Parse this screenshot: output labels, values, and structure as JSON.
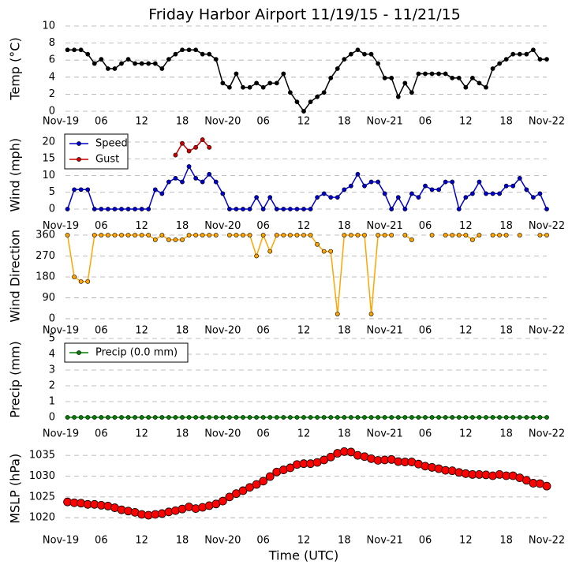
{
  "chart_data": [
    {
      "type": "line",
      "title": "Friday Harbor Airport 11/19/15 - 11/21/15",
      "ylabel": "Temp (°C)",
      "color": "#000000",
      "x": [
        1,
        2,
        3,
        4,
        5,
        6,
        7,
        8,
        9,
        10,
        11,
        12,
        13,
        14,
        15,
        16,
        17,
        18,
        19,
        20,
        21,
        22,
        23,
        24,
        25,
        26,
        27,
        28,
        29,
        30,
        31,
        32,
        33,
        34,
        35,
        36,
        37,
        38,
        39,
        40,
        41,
        42,
        43,
        44,
        45,
        46,
        47,
        48,
        49,
        50,
        51,
        52,
        53,
        54,
        55,
        56,
        57,
        58,
        59,
        60,
        61,
        62,
        63,
        64,
        65,
        66,
        67,
        68,
        69,
        70,
        71,
        72
      ],
      "values": [
        7.2,
        7.2,
        7.2,
        6.7,
        5.6,
        6.1,
        5.0,
        5.0,
        5.6,
        6.1,
        5.6,
        5.6,
        5.6,
        5.6,
        5.0,
        6.1,
        6.7,
        7.2,
        7.2,
        7.2,
        6.7,
        6.7,
        6.1,
        3.3,
        2.8,
        4.4,
        2.8,
        2.8,
        3.3,
        2.8,
        3.3,
        3.3,
        4.4,
        2.2,
        1.1,
        0,
        1.1,
        1.7,
        2.2,
        3.9,
        5.0,
        6.1,
        6.7,
        7.2,
        6.7,
        6.7,
        5.6,
        3.9,
        3.9,
        1.7,
        3.3,
        2.2,
        4.4,
        4.4,
        4.4,
        4.4,
        4.4,
        3.9,
        3.9,
        2.8,
        3.9,
        3.3,
        2.8,
        5.0,
        5.6,
        6.1,
        6.7,
        6.7,
        6.7,
        7.2,
        6.1,
        6.1
      ],
      "xlim": [
        0,
        72
      ],
      "xticks": [
        {
          "value": 0,
          "label": "Nov-19"
        },
        {
          "value": 6,
          "label": "06"
        },
        {
          "value": 12,
          "label": "12"
        },
        {
          "value": 18,
          "label": "18"
        },
        {
          "value": 24,
          "label": "Nov-20"
        },
        {
          "value": 30,
          "label": "06"
        },
        {
          "value": 36,
          "label": "12"
        },
        {
          "value": 42,
          "label": "18"
        },
        {
          "value": 48,
          "label": "Nov-21"
        },
        {
          "value": 54,
          "label": "06"
        },
        {
          "value": 60,
          "label": "12"
        },
        {
          "value": 66,
          "label": "18"
        },
        {
          "value": 72,
          "label": "Nov-22"
        }
      ],
      "ylim": [
        0,
        10
      ],
      "yticks": [
        0,
        2,
        4,
        6,
        8,
        10
      ],
      "grid": true
    },
    {
      "type": "line",
      "ylabel": "Wind (mph)",
      "legend": "upper left",
      "x": [
        1,
        2,
        3,
        4,
        5,
        6,
        7,
        8,
        9,
        10,
        11,
        12,
        13,
        14,
        15,
        16,
        17,
        18,
        19,
        20,
        21,
        22,
        23,
        24,
        25,
        26,
        27,
        28,
        29,
        30,
        31,
        32,
        33,
        34,
        35,
        36,
        37,
        38,
        39,
        40,
        41,
        42,
        43,
        44,
        45,
        46,
        47,
        48,
        49,
        50,
        51,
        52,
        53,
        54,
        55,
        56,
        57,
        58,
        59,
        60,
        61,
        62,
        63,
        64,
        65,
        66,
        67,
        68,
        69,
        70,
        71,
        72
      ],
      "series": [
        {
          "name": "Speed",
          "color": "#0000cc",
          "values": [
            0,
            5.8,
            5.8,
            5.8,
            0,
            0,
            0,
            0,
            0,
            0,
            0,
            0,
            0,
            5.8,
            4.6,
            8.1,
            9.2,
            8.1,
            12.7,
            9.2,
            8.1,
            10.4,
            8.1,
            4.6,
            0,
            0,
            0,
            0,
            3.5,
            0,
            3.5,
            0,
            0,
            0,
            0,
            0,
            0,
            3.5,
            4.6,
            3.5,
            3.5,
            5.8,
            6.9,
            10.4,
            6.9,
            8.1,
            8.1,
            4.6,
            0,
            3.5,
            0,
            4.6,
            3.5,
            6.9,
            5.8,
            5.8,
            8.1,
            8.1,
            0,
            3.5,
            4.6,
            8.1,
            4.6,
            4.6,
            4.6,
            6.9,
            6.9,
            9.2,
            5.8,
            3.5,
            4.6,
            0
          ]
        },
        {
          "name": "Gust",
          "color": "#cc0000",
          "values": [
            null,
            null,
            null,
            null,
            null,
            null,
            null,
            null,
            null,
            null,
            null,
            null,
            null,
            null,
            null,
            null,
            16.1,
            19.6,
            17.3,
            18.4,
            20.7,
            18.4,
            null,
            null,
            null,
            null,
            null,
            null,
            null,
            null,
            null,
            null,
            null,
            null,
            null,
            null,
            null,
            null,
            null,
            null,
            null,
            null,
            null,
            null,
            null,
            null,
            null,
            null,
            null,
            null,
            null,
            null,
            null,
            null,
            null,
            null,
            null,
            null,
            null,
            null,
            null,
            null,
            null,
            null,
            null,
            null,
            null,
            null,
            null,
            null,
            null,
            null
          ]
        }
      ],
      "xlim": [
        0,
        72
      ],
      "xticks": [
        {
          "value": 0,
          "label": "Nov-19"
        },
        {
          "value": 6,
          "label": "06"
        },
        {
          "value": 12,
          "label": "12"
        },
        {
          "value": 18,
          "label": "18"
        },
        {
          "value": 24,
          "label": "Nov-20"
        },
        {
          "value": 30,
          "label": "06"
        },
        {
          "value": 36,
          "label": "12"
        },
        {
          "value": 42,
          "label": "18"
        },
        {
          "value": 48,
          "label": "Nov-21"
        },
        {
          "value": 54,
          "label": "06"
        },
        {
          "value": 60,
          "label": "12"
        },
        {
          "value": 66,
          "label": "18"
        },
        {
          "value": 72,
          "label": "Nov-22"
        }
      ],
      "ylim": [
        -2,
        22.35
      ],
      "yticks": [
        0,
        5,
        10,
        15,
        20
      ],
      "grid": true
    },
    {
      "type": "line",
      "ylabel": "Wind Direction",
      "color": "#ffa500",
      "x": [
        1,
        2,
        3,
        4,
        5,
        6,
        7,
        8,
        9,
        10,
        11,
        12,
        13,
        14,
        15,
        16,
        17,
        18,
        19,
        20,
        21,
        22,
        23,
        24,
        25,
        26,
        27,
        28,
        29,
        30,
        31,
        32,
        33,
        34,
        35,
        36,
        37,
        38,
        39,
        40,
        41,
        42,
        43,
        44,
        45,
        46,
        47,
        48,
        49,
        50,
        51,
        52,
        53,
        54,
        55,
        56,
        57,
        58,
        59,
        60,
        61,
        62,
        63,
        64,
        65,
        66,
        67,
        68,
        69,
        70,
        71,
        72
      ],
      "values": [
        360,
        180,
        160,
        160,
        360,
        360,
        360,
        360,
        360,
        360,
        360,
        360,
        360,
        340,
        360,
        340,
        340,
        340,
        360,
        360,
        360,
        360,
        360,
        null,
        360,
        360,
        360,
        360,
        270,
        360,
        290,
        360,
        360,
        360,
        360,
        360,
        360,
        320,
        290,
        290,
        20,
        360,
        360,
        360,
        360,
        20,
        360,
        360,
        360,
        null,
        360,
        340,
        null,
        null,
        360,
        null,
        360,
        360,
        360,
        360,
        340,
        360,
        null,
        360,
        360,
        360,
        null,
        360,
        null,
        null,
        360,
        360
      ],
      "xlim": [
        0,
        72
      ],
      "xticks": [
        {
          "value": 0,
          "label": "Nov-19"
        },
        {
          "value": 6,
          "label": "06"
        },
        {
          "value": 12,
          "label": "12"
        },
        {
          "value": 18,
          "label": "18"
        },
        {
          "value": 24,
          "label": "Nov-20"
        },
        {
          "value": 30,
          "label": "06"
        },
        {
          "value": 36,
          "label": "12"
        },
        {
          "value": 42,
          "label": "18"
        },
        {
          "value": 48,
          "label": "Nov-21"
        },
        {
          "value": 54,
          "label": "06"
        },
        {
          "value": 60,
          "label": "12"
        },
        {
          "value": 66,
          "label": "18"
        },
        {
          "value": 72,
          "label": "Nov-22"
        }
      ],
      "ylim": [
        -7,
        375
      ],
      "yticks": [
        0,
        90,
        180,
        270,
        360
      ],
      "grid": true
    },
    {
      "type": "line",
      "ylabel": "Precip (mm)",
      "legend": "upper left",
      "x": [
        1,
        2,
        3,
        4,
        5,
        6,
        7,
        8,
        9,
        10,
        11,
        12,
        13,
        14,
        15,
        16,
        17,
        18,
        19,
        20,
        21,
        22,
        23,
        24,
        25,
        26,
        27,
        28,
        29,
        30,
        31,
        32,
        33,
        34,
        35,
        36,
        37,
        38,
        39,
        40,
        41,
        42,
        43,
        44,
        45,
        46,
        47,
        48,
        49,
        50,
        51,
        52,
        53,
        54,
        55,
        56,
        57,
        58,
        59,
        60,
        61,
        62,
        63,
        64,
        65,
        66,
        67,
        68,
        69,
        70,
        71,
        72
      ],
      "series": [
        {
          "name": "Precip (0.0 mm)",
          "color": "#008000",
          "values": [
            0,
            0,
            0,
            0,
            0,
            0,
            0,
            0,
            0,
            0,
            0,
            0,
            0,
            0,
            0,
            0,
            0,
            0,
            0,
            0,
            0,
            0,
            0,
            0,
            0,
            0,
            0,
            0,
            0,
            0,
            0,
            0,
            0,
            0,
            0,
            0,
            0,
            0,
            0,
            0,
            0,
            0,
            0,
            0,
            0,
            0,
            0,
            0,
            0,
            0,
            0,
            0,
            0,
            0,
            0,
            0,
            0,
            0,
            0,
            0,
            0,
            0,
            0,
            0,
            0,
            0,
            0,
            0,
            0,
            0,
            0,
            0
          ]
        }
      ],
      "xlim": [
        0,
        72
      ],
      "xticks": [
        {
          "value": 0,
          "label": "Nov-19"
        },
        {
          "value": 6,
          "label": "06"
        },
        {
          "value": 12,
          "label": "12"
        },
        {
          "value": 18,
          "label": "18"
        },
        {
          "value": 24,
          "label": "Nov-20"
        },
        {
          "value": 30,
          "label": "06"
        },
        {
          "value": 36,
          "label": "12"
        },
        {
          "value": 42,
          "label": "18"
        },
        {
          "value": 48,
          "label": "Nov-21"
        },
        {
          "value": 54,
          "label": "06"
        },
        {
          "value": 60,
          "label": "12"
        },
        {
          "value": 66,
          "label": "18"
        },
        {
          "value": 72,
          "label": "Nov-22"
        }
      ],
      "ylim": [
        -0.4,
        5.2
      ],
      "yticks": [
        0,
        1,
        2,
        3,
        4,
        5
      ],
      "grid": true
    },
    {
      "type": "scatter",
      "ylabel": "MSLP (hPa)",
      "xlabel": "Time (UTC)",
      "color": "#ff0000",
      "x": [
        1,
        2,
        3,
        4,
        5,
        6,
        7,
        8,
        9,
        10,
        11,
        12,
        13,
        14,
        15,
        16,
        17,
        18,
        19,
        20,
        21,
        22,
        23,
        24,
        25,
        26,
        27,
        28,
        29,
        30,
        31,
        32,
        33,
        34,
        35,
        36,
        37,
        38,
        39,
        40,
        41,
        42,
        43,
        44,
        45,
        46,
        47,
        48,
        49,
        50,
        51,
        52,
        53,
        54,
        55,
        56,
        57,
        58,
        59,
        60,
        61,
        62,
        63,
        64,
        65,
        66,
        67,
        68,
        69,
        70,
        71,
        72
      ],
      "values": [
        1023.8,
        1023.6,
        1023.5,
        1023.2,
        1023.2,
        1023.0,
        1022.8,
        1022.4,
        1021.9,
        1021.6,
        1021.3,
        1020.8,
        1020.6,
        1020.8,
        1021.0,
        1021.4,
        1021.7,
        1022.1,
        1022.6,
        1022.2,
        1022.5,
        1022.9,
        1023.3,
        1024.0,
        1025.0,
        1025.8,
        1026.5,
        1027.3,
        1028.0,
        1028.8,
        1029.9,
        1031.0,
        1031.5,
        1032.0,
        1032.8,
        1033.0,
        1033.0,
        1033.3,
        1033.9,
        1034.6,
        1035.5,
        1035.9,
        1035.8,
        1035.0,
        1034.7,
        1034.2,
        1033.8,
        1033.9,
        1034.0,
        1033.5,
        1033.4,
        1033.4,
        1032.9,
        1032.4,
        1032.1,
        1031.8,
        1031.4,
        1031.3,
        1030.9,
        1030.6,
        1030.4,
        1030.4,
        1030.3,
        1030.1,
        1030.4,
        1030.1,
        1030.1,
        1029.6,
        1029.0,
        1028.3,
        1028.2,
        1027.6
      ],
      "xlim": [
        0,
        72
      ],
      "xticks": [
        {
          "value": 0,
          "label": "Nov-19"
        },
        {
          "value": 6,
          "label": "06"
        },
        {
          "value": 12,
          "label": "12"
        },
        {
          "value": 18,
          "label": "18"
        },
        {
          "value": 24,
          "label": "Nov-20"
        },
        {
          "value": 30,
          "label": "06"
        },
        {
          "value": 36,
          "label": "12"
        },
        {
          "value": 42,
          "label": "18"
        },
        {
          "value": 48,
          "label": "Nov-21"
        },
        {
          "value": 54,
          "label": "06"
        },
        {
          "value": 60,
          "label": "12"
        },
        {
          "value": 66,
          "label": "18"
        },
        {
          "value": 72,
          "label": "Nov-22"
        }
      ],
      "ylim": [
        1017,
        1037
      ],
      "yticks": [
        1020,
        1025,
        1030,
        1035
      ],
      "grid": true
    }
  ]
}
